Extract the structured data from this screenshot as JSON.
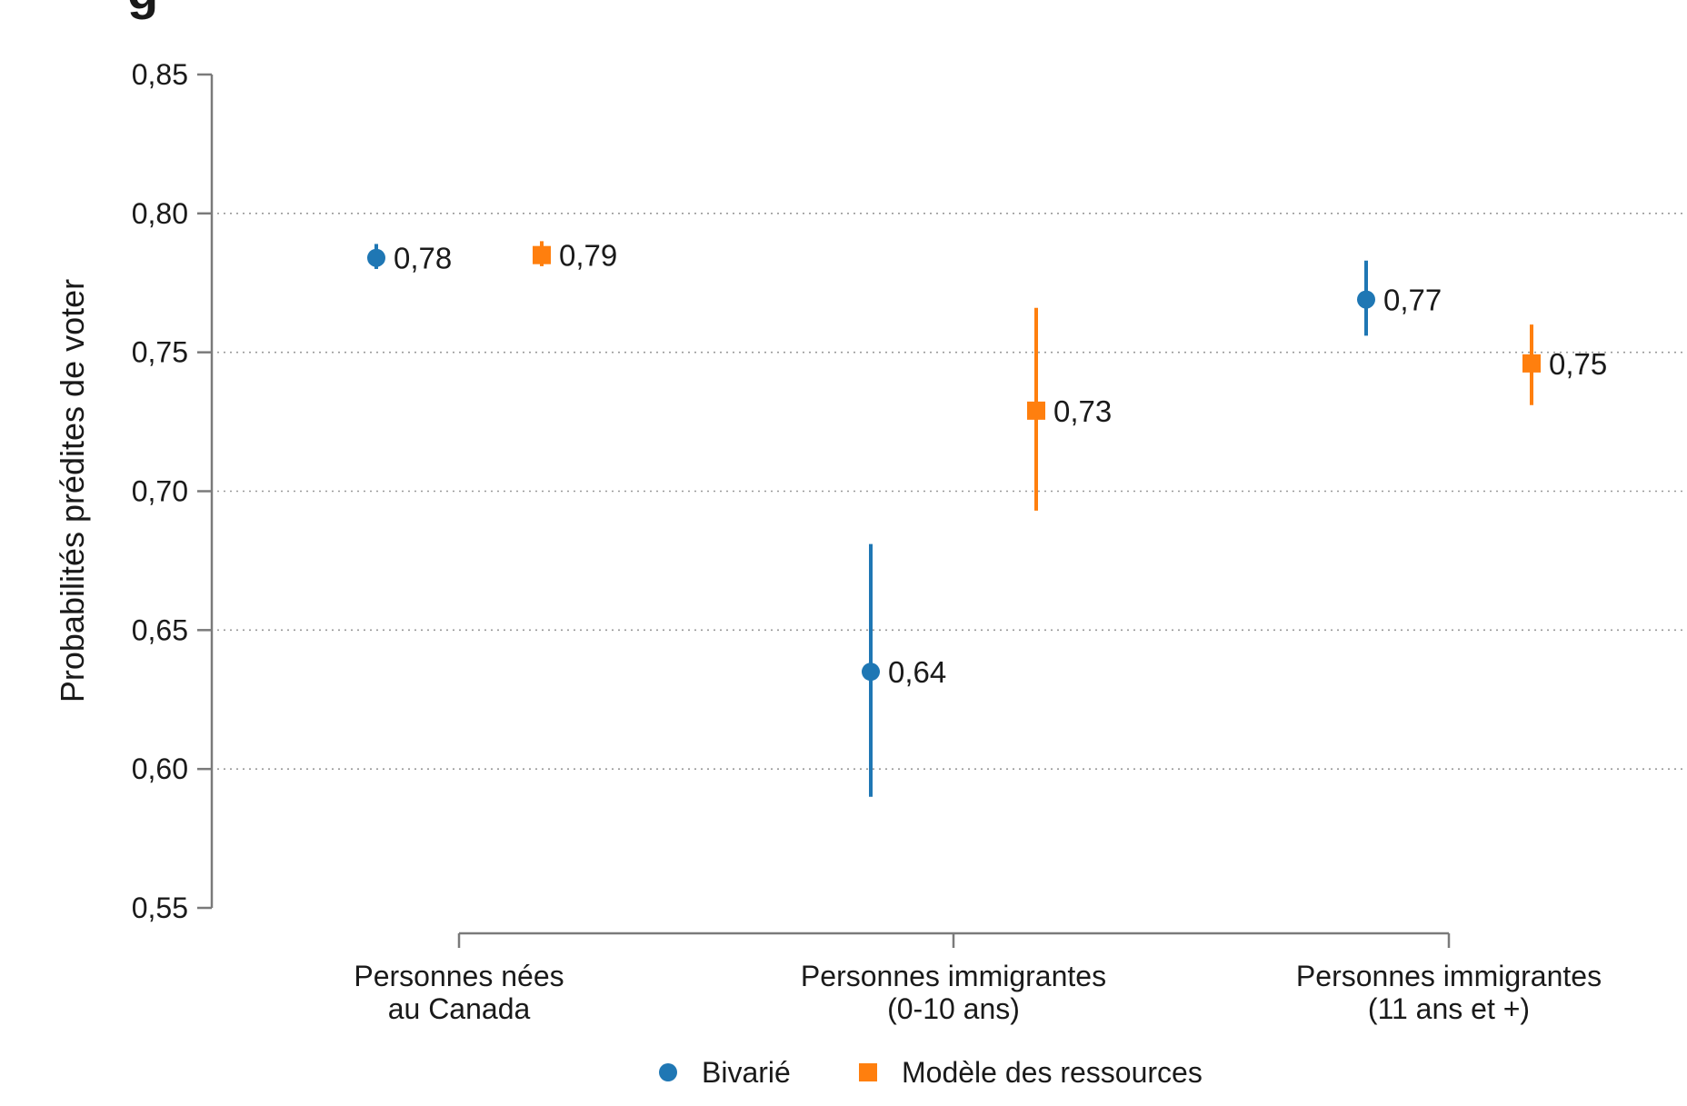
{
  "chart_data": {
    "type": "scatter",
    "title": "",
    "xlabel": "",
    "ylabel": "Probabilités prédites de voter",
    "ylim": [
      0.55,
      0.85
    ],
    "yticks": [
      0.55,
      0.6,
      0.65,
      0.7,
      0.75,
      0.8,
      0.85
    ],
    "ytick_labels": [
      "0,55",
      "0,60",
      "0,65",
      "0,70",
      "0,75",
      "0,80",
      "0,85"
    ],
    "categories": [
      [
        "Personnes nées",
        "au Canada"
      ],
      [
        "Personnes immigrantes",
        "(0-10 ans)"
      ],
      [
        "Personnes immigrantes",
        "(11 ans et +)"
      ]
    ],
    "grid": "horizontal dotted",
    "legend_position": "bottom",
    "series": [
      {
        "name": "Bivarié",
        "color": "#1f77b4",
        "marker": "circle",
        "values": [
          0.784,
          0.635,
          0.769
        ],
        "ci_low": [
          0.78,
          0.59,
          0.756
        ],
        "ci_high": [
          0.789,
          0.681,
          0.783
        ],
        "labels": [
          "0,78",
          "0,64",
          "0,77"
        ]
      },
      {
        "name": "Modèle des ressources",
        "color": "#ff7f0e",
        "marker": "square",
        "values": [
          0.785,
          0.729,
          0.746
        ],
        "ci_low": [
          0.781,
          0.693,
          0.731
        ],
        "ci_high": [
          0.79,
          0.766,
          0.76
        ],
        "labels": [
          "0,79",
          "0,73",
          "0,75"
        ]
      }
    ]
  }
}
